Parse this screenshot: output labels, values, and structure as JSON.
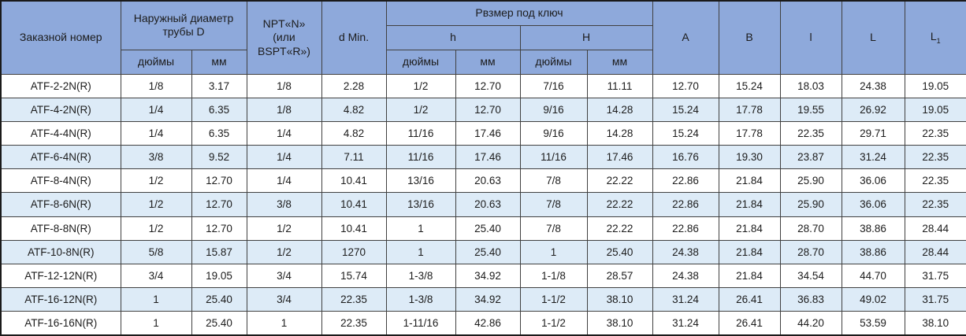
{
  "table": {
    "header": {
      "order_number": "Заказной номер",
      "outer_diameter": "Наружный диаметр трубы D",
      "npt": [
        "NPT«N»",
        "(или",
        "BSPT«R»)"
      ],
      "d_min": "d Min.",
      "wrench_size": "Рвзмер под ключ",
      "h_lower": "h",
      "h_upper": "H",
      "inches": "дюймы",
      "mm": "мм",
      "col_a": "A",
      "col_b": "B",
      "col_l_lower": "l",
      "col_l_upper": "L",
      "col_l1_base": "L",
      "col_l1_sub": "1"
    },
    "rows": [
      [
        "ATF-2-2N(R)",
        "1/8",
        "3.17",
        "1/8",
        "2.28",
        "1/2",
        "12.70",
        "7/16",
        "11.11",
        "12.70",
        "15.24",
        "18.03",
        "24.38",
        "19.05"
      ],
      [
        "ATF-4-2N(R)",
        "1/4",
        "6.35",
        "1/8",
        "4.82",
        "1/2",
        "12.70",
        "9/16",
        "14.28",
        "15.24",
        "17.78",
        "19.55",
        "26.92",
        "19.05"
      ],
      [
        "ATF-4-4N(R)",
        "1/4",
        "6.35",
        "1/4",
        "4.82",
        "11/16",
        "17.46",
        "9/16",
        "14.28",
        "15.24",
        "17.78",
        "22.35",
        "29.71",
        "22.35"
      ],
      [
        "ATF-6-4N(R)",
        "3/8",
        "9.52",
        "1/4",
        "7.11",
        "11/16",
        "17.46",
        "11/16",
        "17.46",
        "16.76",
        "19.30",
        "23.87",
        "31.24",
        "22.35"
      ],
      [
        "ATF-8-4N(R)",
        "1/2",
        "12.70",
        "1/4",
        "10.41",
        "13/16",
        "20.63",
        "7/8",
        "22.22",
        "22.86",
        "21.84",
        "25.90",
        "36.06",
        "22.35"
      ],
      [
        "ATF-8-6N(R)",
        "1/2",
        "12.70",
        "3/8",
        "10.41",
        "13/16",
        "20.63",
        "7/8",
        "22.22",
        "22.86",
        "21.84",
        "25.90",
        "36.06",
        "22.35"
      ],
      [
        "ATF-8-8N(R)",
        "1/2",
        "12.70",
        "1/2",
        "10.41",
        "1",
        "25.40",
        "7/8",
        "22.22",
        "22.86",
        "21.84",
        "28.70",
        "38.86",
        "28.44"
      ],
      [
        "ATF-10-8N(R)",
        "5/8",
        "15.87",
        "1/2",
        "1270",
        "1",
        "25.40",
        "1",
        "25.40",
        "24.38",
        "21.84",
        "28.70",
        "38.86",
        "28.44"
      ],
      [
        "ATF-12-12N(R)",
        "3/4",
        "19.05",
        "3/4",
        "15.74",
        "1-3/8",
        "34.92",
        "1-1/8",
        "28.57",
        "24.38",
        "21.84",
        "34.54",
        "44.70",
        "31.75"
      ],
      [
        "ATF-16-12N(R)",
        "1",
        "25.40",
        "3/4",
        "22.35",
        "1-3/8",
        "34.92",
        "1-1/2",
        "38.10",
        "31.24",
        "26.41",
        "36.83",
        "49.02",
        "31.75"
      ],
      [
        "ATF-16-16N(R)",
        "1",
        "25.40",
        "1",
        "22.35",
        "1-11/16",
        "42.86",
        "1-1/2",
        "38.10",
        "31.24",
        "26.41",
        "44.20",
        "53.59",
        "38.10"
      ]
    ],
    "colors": {
      "header_bg": "#8EA9DB",
      "row_bg": "#FFFFFF",
      "row_alt_bg": "#DDEBF7",
      "border": "#404040",
      "outer_border": "#1A1A1A",
      "text": "#1C1C1C"
    }
  }
}
